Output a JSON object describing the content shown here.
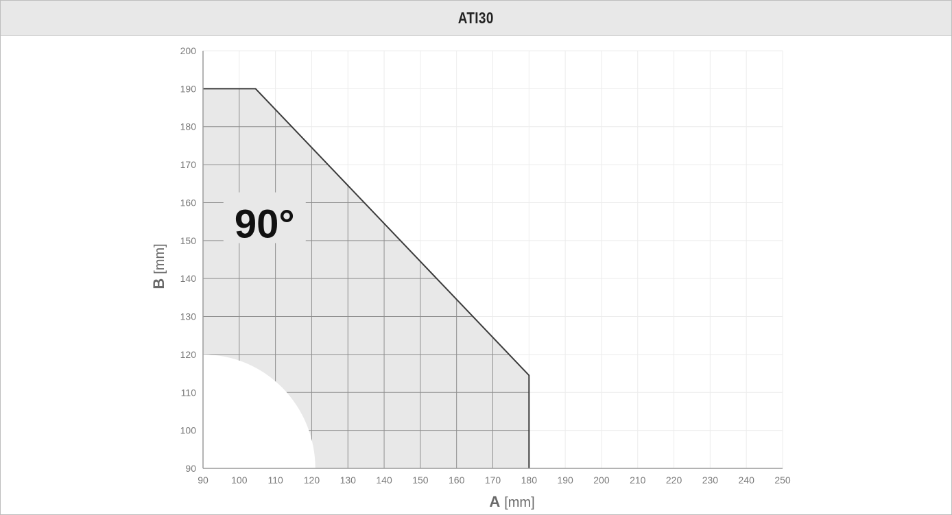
{
  "header": {
    "title": "ATI30"
  },
  "chart_data": {
    "type": "area",
    "title": "ATI30",
    "xlabel": {
      "main": "A",
      "unit": "[mm]"
    },
    "ylabel": {
      "main": "B",
      "unit": "[mm]"
    },
    "xlim": [
      90,
      250
    ],
    "ylim": [
      90,
      200
    ],
    "x_ticks": [
      "90",
      "100",
      "110",
      "120",
      "130",
      "140",
      "150",
      "160",
      "170",
      "180",
      "190",
      "200",
      "210",
      "220",
      "230",
      "240",
      "250"
    ],
    "y_ticks": [
      "90",
      "100",
      "110",
      "120",
      "130",
      "140",
      "150",
      "160",
      "170",
      "180",
      "190",
      "200"
    ],
    "grid": true,
    "region_boundary": [
      {
        "x": 90,
        "y": 190
      },
      {
        "x": 104.5,
        "y": 190
      },
      {
        "x": 180,
        "y": 114.5
      },
      {
        "x": 180,
        "y": 90
      }
    ],
    "excluded_quarter_circle": {
      "center": [
        90,
        90
      ],
      "radius_x": 31,
      "radius_y": 30
    },
    "annotation": {
      "text": "90°",
      "x": 107,
      "y": 158
    },
    "colors": {
      "fill": "#e8e8e8",
      "boundary": "#3a3a3a",
      "grid_minor": "#ececec",
      "grid_inside": "#8e8e8e"
    }
  }
}
